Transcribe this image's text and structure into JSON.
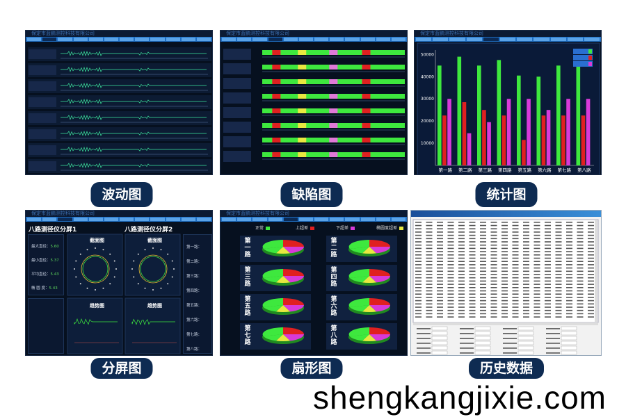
{
  "company_title": "保定市蓝鹏测控科技有限公司",
  "labels": {
    "wave": "波动图",
    "defect": "缺陷图",
    "stats": "统计图",
    "split": "分屏图",
    "pie": "扇形图",
    "history": "历史数据"
  },
  "watermark": "shengkangjixie.com",
  "colors": {
    "pill": "#0e2b52",
    "menu": "#1f6fc4",
    "green": "#3ee83e",
    "red": "#e02020",
    "magenta": "#d83ad8",
    "yellow": "#e8e840",
    "pink": "#e07ad8"
  },
  "split": {
    "title1": "八路测径仪分屏1",
    "title2": "八路测径仪分屏2",
    "section_view": "截面图",
    "trend_view": "趋势图",
    "left_stats": [
      {
        "label": "最大直径：",
        "value": "5.60"
      },
      {
        "label": "最小直径：",
        "value": "5.37"
      },
      {
        "label": "平均直径：",
        "value": "5.43"
      },
      {
        "label": "椭 圆 度：",
        "value": "5.43"
      }
    ],
    "channels": [
      "第一路：",
      "第二路：",
      "第三路：",
      "第四路：",
      "第五路：",
      "第六路：",
      "第七路：",
      "第八路："
    ]
  },
  "pie": {
    "legend": [
      {
        "label": "正常",
        "color": "#3ee83e"
      },
      {
        "label": "上超差",
        "color": "#e02020"
      },
      {
        "label": "下超差",
        "color": "#d83ad8"
      },
      {
        "label": "椭圆度超差",
        "color": "#e8e840"
      }
    ],
    "channels": [
      "第一路",
      "第二路",
      "第三路",
      "第四路",
      "第五路",
      "第六路",
      "第七路",
      "第八路"
    ]
  },
  "defect": {
    "block_positions": [
      0.07,
      0.25,
      0.47,
      0.7
    ],
    "block_colors": [
      "#e02020",
      "#e8e840",
      "#e07ad8",
      "#e02020"
    ],
    "rows": 8
  },
  "chart_data": {
    "type": "bar",
    "categories": [
      "第一路",
      "第二路",
      "第三路",
      "第四路",
      "第五路",
      "第六路",
      "第七路",
      "第八路"
    ],
    "series": [
      {
        "color": "#3ee83e",
        "values": [
          45000,
          49000,
          45000,
          47500,
          40500,
          40000,
          45000,
          45000
        ]
      },
      {
        "color": "#e02020",
        "values": [
          22500,
          28500,
          25000,
          22500,
          11500,
          22500,
          22500,
          22500
        ]
      },
      {
        "color": "#d83ad8",
        "values": [
          30000,
          14500,
          19500,
          30000,
          30000,
          25000,
          30000,
          30000
        ]
      }
    ],
    "yticks": [
      10000,
      20000,
      30000,
      40000,
      50000
    ],
    "ylim": [
      0,
      52000
    ],
    "legend": "top-right"
  }
}
